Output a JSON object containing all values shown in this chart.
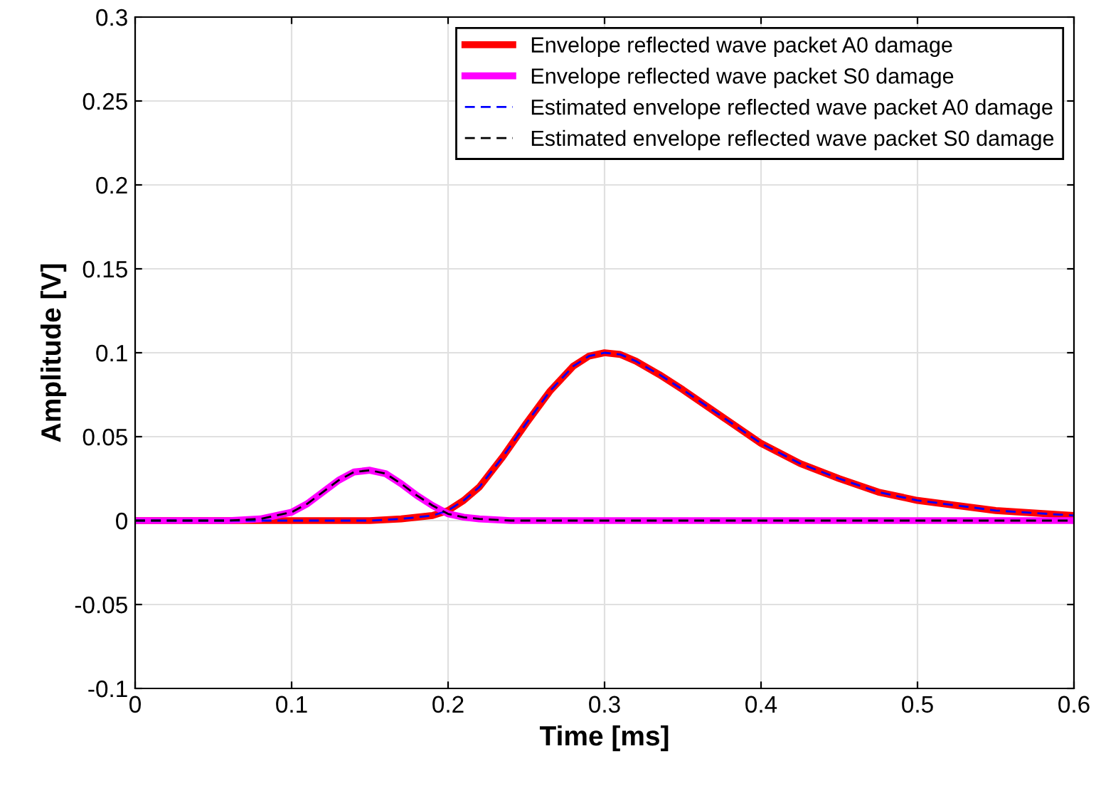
{
  "chart_data": {
    "type": "line",
    "xlabel": "Time [ms]",
    "ylabel": "Amplitude [V]",
    "xlim": [
      0,
      0.6
    ],
    "ylim": [
      -0.1,
      0.3
    ],
    "xticks": [
      0,
      0.1,
      0.2,
      0.3,
      0.4,
      0.5,
      0.6
    ],
    "yticks": [
      -0.1,
      -0.05,
      0,
      0.05,
      0.1,
      0.15,
      0.2,
      0.25,
      0.3
    ],
    "grid": true,
    "legend": "top right",
    "series": [
      {
        "name": "Envelope reflected wave packet A0 damage",
        "color": "#ff0000",
        "line_style": "solid",
        "x": [
          0,
          0.15,
          0.17,
          0.19,
          0.2,
          0.21,
          0.22,
          0.235,
          0.25,
          0.265,
          0.28,
          0.29,
          0.3,
          0.31,
          0.32,
          0.335,
          0.35,
          0.375,
          0.4,
          0.425,
          0.45,
          0.475,
          0.5,
          0.55,
          0.6
        ],
        "values": [
          0,
          0,
          0.001,
          0.003,
          0.006,
          0.012,
          0.02,
          0.038,
          0.058,
          0.077,
          0.092,
          0.098,
          0.1,
          0.099,
          0.095,
          0.087,
          0.078,
          0.062,
          0.046,
          0.034,
          0.025,
          0.017,
          0.012,
          0.006,
          0.003
        ]
      },
      {
        "name": "Envelope reflected wave packet S0 damage",
        "color": "#ff00ff",
        "line_style": "solid",
        "x": [
          0,
          0.06,
          0.08,
          0.1,
          0.11,
          0.12,
          0.13,
          0.14,
          0.15,
          0.16,
          0.17,
          0.18,
          0.19,
          0.2,
          0.21,
          0.22,
          0.24,
          0.6
        ],
        "values": [
          0,
          0,
          0.001,
          0.005,
          0.01,
          0.017,
          0.024,
          0.029,
          0.03,
          0.028,
          0.022,
          0.015,
          0.009,
          0.004,
          0.002,
          0.001,
          0,
          0
        ]
      },
      {
        "name": "Estimated envelope reflected wave packet A0 damage",
        "color": "#0000ff",
        "line_style": "dashed",
        "x": [
          0,
          0.15,
          0.17,
          0.19,
          0.2,
          0.21,
          0.22,
          0.235,
          0.25,
          0.265,
          0.28,
          0.29,
          0.3,
          0.31,
          0.32,
          0.335,
          0.35,
          0.375,
          0.4,
          0.425,
          0.45,
          0.475,
          0.5,
          0.55,
          0.6
        ],
        "values": [
          0,
          0,
          0.001,
          0.003,
          0.006,
          0.012,
          0.02,
          0.038,
          0.058,
          0.077,
          0.092,
          0.098,
          0.1,
          0.099,
          0.095,
          0.087,
          0.078,
          0.062,
          0.046,
          0.034,
          0.025,
          0.017,
          0.012,
          0.006,
          0.003
        ]
      },
      {
        "name": "Estimated envelope reflected wave packet S0 damage",
        "color": "#000000",
        "line_style": "dashed",
        "x": [
          0,
          0.06,
          0.08,
          0.1,
          0.11,
          0.12,
          0.13,
          0.14,
          0.15,
          0.16,
          0.17,
          0.18,
          0.19,
          0.2,
          0.21,
          0.22,
          0.24,
          0.6
        ],
        "values": [
          0,
          0,
          0.001,
          0.005,
          0.01,
          0.017,
          0.024,
          0.029,
          0.03,
          0.028,
          0.022,
          0.015,
          0.009,
          0.004,
          0.002,
          0.001,
          0,
          0
        ]
      }
    ]
  }
}
